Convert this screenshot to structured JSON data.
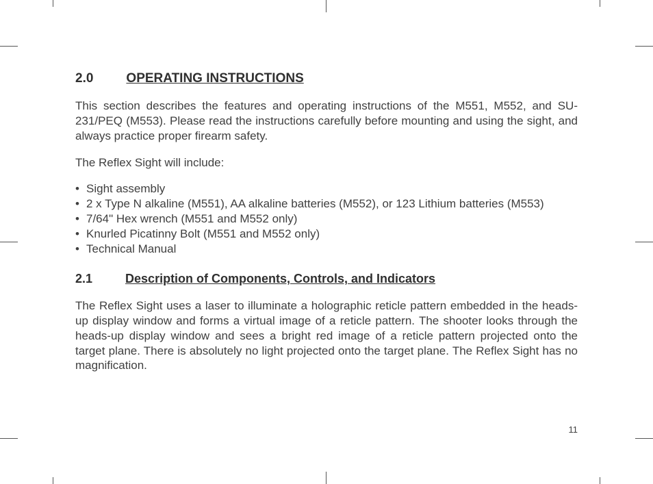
{
  "colors": {
    "background": "#ffffff",
    "text": "#3f3f3f",
    "heading": "#2f2f2f",
    "crop_marks": "#555555"
  },
  "typography": {
    "family": "Arial, Helvetica, sans-serif",
    "heading_size_pt": 19,
    "subheading_size_pt": 18,
    "body_size_pt": 17,
    "pagenum_size_pt": 13,
    "heading_weight": 700,
    "body_weight": 400,
    "line_height": 1.28
  },
  "page_number": "11",
  "section": {
    "number": "2.0",
    "title": "OPERATING INSTRUCTIONS",
    "intro": "This section describes the features and operating instructions of the M551, M552, and SU-231/PEQ (M553). Please read the instructions carefully before mounting and using the sight, and always practice proper firearm safety.",
    "include_lead": "The Reflex Sight will include:",
    "items": [
      "Sight assembly",
      "2 x Type N alkaline (M551), AA alkaline batteries (M552), or 123 Lithium batteries (M553)",
      "7/64\" Hex wrench (M551 and M552 only)",
      "Knurled Picatinny Bolt (M551 and M552 only)",
      "Technical Manual"
    ]
  },
  "subsection": {
    "number": "2.1",
    "title": "Description of Components, Controls, and Indicators",
    "body": "The Reflex Sight uses a laser to illuminate a holographic reticle pattern embedded in the heads-up display window and forms a virtual image of a reticle pattern. The shooter looks through the heads-up display window and sees a bright red image of a reticle pattern projected onto the target plane. There is absolutely no light projected onto the target plane. The Reflex Sight has no magnification."
  }
}
